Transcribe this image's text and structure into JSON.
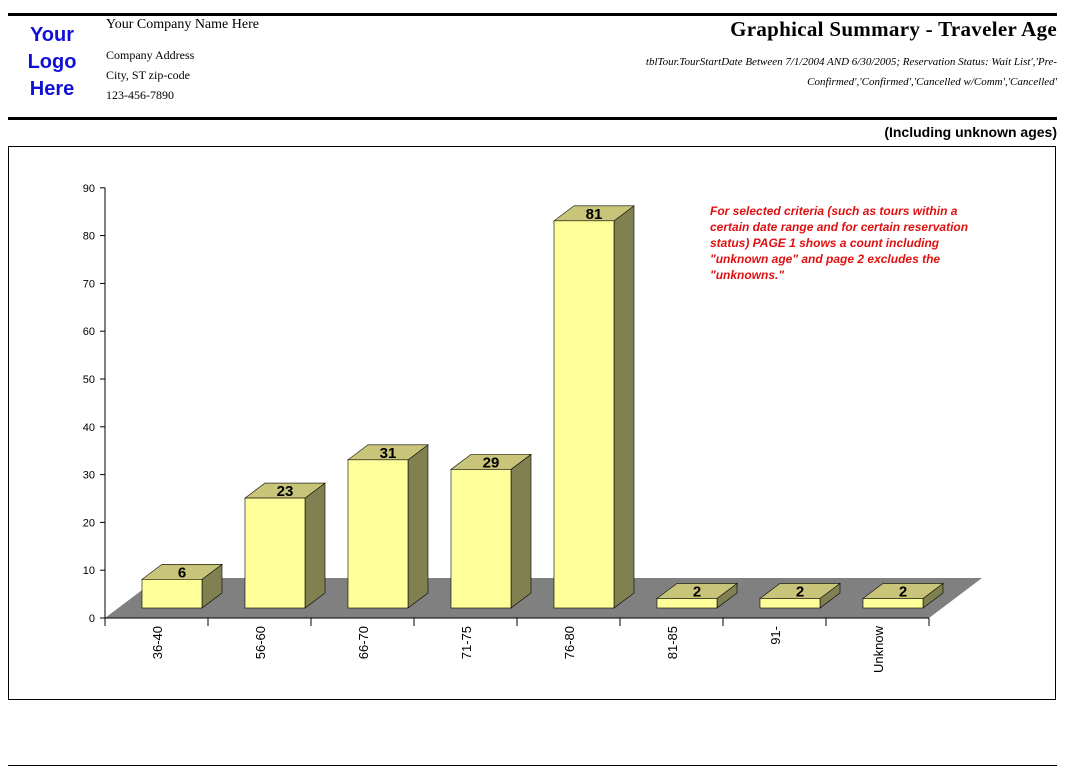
{
  "header": {
    "logo_lines": [
      "Your",
      "Logo",
      "Here"
    ],
    "company_name": "Your Company Name Here",
    "address_line1": "Company Address",
    "address_line2": "City, ST  zip-code",
    "phone": "123-456-7890",
    "report_title": "Graphical Summary - Traveler Age",
    "criteria": "tblTour.TourStartDate Between 7/1/2004 AND 6/30/2005; Reservation Status: Wait List','Pre-Confirmed','Confirmed','Cancelled w/Comm','Cancelled'"
  },
  "subtitle": "(Including unknown ages)",
  "note": "For selected criteria (such as tours within a certain date range and for certain reservation status) PAGE 1 shows a count including \"unknown age\" and page 2 excludes the \"unknowns.\"",
  "chart_data": {
    "type": "bar",
    "categories": [
      "36-40",
      "56-60",
      "66-70",
      "71-75",
      "76-80",
      "81-85",
      "91-",
      "Unknow"
    ],
    "values": [
      6,
      23,
      31,
      29,
      81,
      2,
      2,
      2
    ],
    "yticks": [
      0,
      10,
      20,
      30,
      40,
      50,
      60,
      70,
      80,
      90
    ],
    "ylim": [
      0,
      90
    ],
    "title": "",
    "xlabel": "",
    "ylabel": "",
    "grid": false,
    "data_labels": true,
    "style": "3d-bar",
    "colors": {
      "bar_front": "#ffff99",
      "bar_top": "#c8c47a",
      "bar_side": "#808050",
      "floor": "#808080"
    }
  }
}
